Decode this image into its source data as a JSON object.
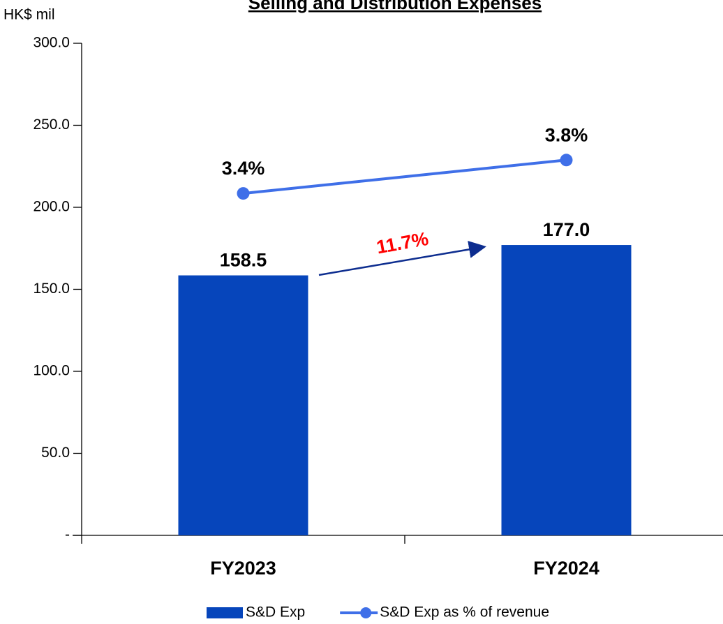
{
  "chart_data": {
    "type": "bar",
    "title": "Selling and Distribution Expenses",
    "y_axis_label": "HK$ mil",
    "categories": [
      "FY2023",
      "FY2024"
    ],
    "series": [
      {
        "name": "S&D Exp",
        "type": "bar",
        "color": "#0645bb",
        "values": [
          158.5,
          177.0
        ],
        "value_labels": [
          "158.5",
          "177.0"
        ]
      },
      {
        "name": "S&D Exp as % of revenue",
        "type": "line",
        "axis": "y2",
        "color": "#3f6fe8",
        "values": [
          3.4,
          3.8
        ],
        "value_labels": [
          "3.4%",
          "3.8%"
        ]
      }
    ],
    "ylim": [
      0,
      300
    ],
    "yticks": [
      {
        "value": 0,
        "label": "-"
      },
      {
        "value": 50,
        "label": "50.0"
      },
      {
        "value": 100,
        "label": "100.0"
      },
      {
        "value": 150,
        "label": "150.0"
      },
      {
        "value": 200,
        "label": "200.0"
      },
      {
        "value": 250,
        "label": "250.0"
      },
      {
        "value": 300,
        "label": "300.0"
      }
    ],
    "y2lim": [
      -0.7,
      5.2
    ],
    "annotation": "11.7%",
    "legend": "bottom"
  }
}
